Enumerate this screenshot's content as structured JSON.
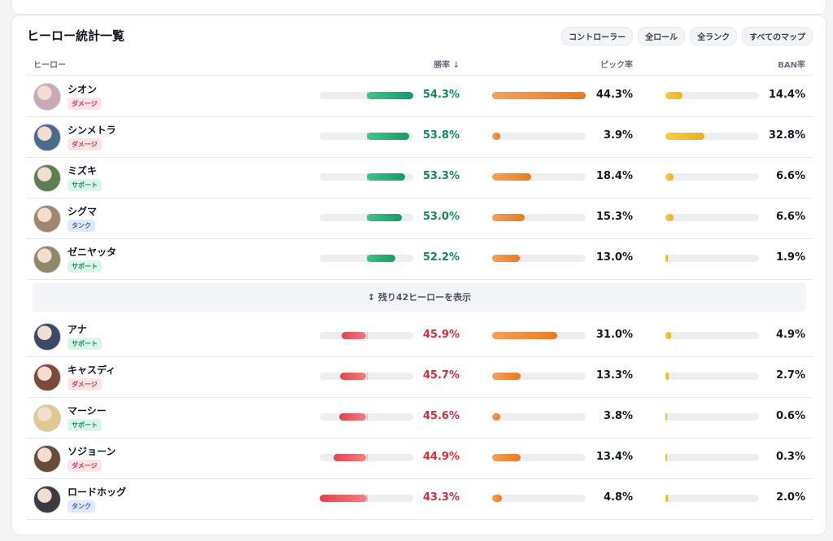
{
  "header": {
    "title": "ヒーロー統計一覧",
    "filters": [
      "コントローラー",
      "全ロール",
      "全ランク",
      "すべてのマップ"
    ]
  },
  "table": {
    "columns": [
      "ヒーロー",
      "勝率 ↓",
      "ピック率",
      "BAN率"
    ],
    "top_rows": [
      {
        "name": "シオン",
        "role": "ダメージ",
        "win_rate": {
          "value": 54.3,
          "label": "54.3%"
        },
        "pick_rate": {
          "value": 44.3,
          "label": "44.3%"
        },
        "ban_rate": {
          "value": 14.4,
          "label": "14.4%"
        }
      },
      {
        "name": "シンメトラ",
        "role": "ダメージ",
        "win_rate": {
          "value": 53.8,
          "label": "53.8%"
        },
        "pick_rate": {
          "value": 3.9,
          "label": "3.9%"
        },
        "ban_rate": {
          "value": 32.8,
          "label": "32.8%"
        }
      },
      {
        "name": "ミズキ",
        "role": "サポート",
        "win_rate": {
          "value": 53.3,
          "label": "53.3%"
        },
        "pick_rate": {
          "value": 18.4,
          "label": "18.4%"
        },
        "ban_rate": {
          "value": 6.6,
          "label": "6.6%"
        }
      },
      {
        "name": "シグマ",
        "role": "タンク",
        "win_rate": {
          "value": 53.0,
          "label": "53.0%"
        },
        "pick_rate": {
          "value": 15.3,
          "label": "15.3%"
        },
        "ban_rate": {
          "value": 6.6,
          "label": "6.6%"
        }
      },
      {
        "name": "ゼニヤッタ",
        "role": "サポート",
        "win_rate": {
          "value": 52.2,
          "label": "52.2%"
        },
        "pick_rate": {
          "value": 13.0,
          "label": "13.0%"
        },
        "ban_rate": {
          "value": 1.9,
          "label": "1.9%"
        }
      }
    ],
    "expand_label": "↕ 残り42ヒーローを表示",
    "bottom_rows": [
      {
        "name": "アナ",
        "role": "サポート",
        "win_rate": {
          "value": 45.9,
          "label": "45.9%"
        },
        "pick_rate": {
          "value": 31.0,
          "label": "31.0%"
        },
        "ban_rate": {
          "value": 4.9,
          "label": "4.9%"
        }
      },
      {
        "name": "キャスディ",
        "role": "ダメージ",
        "win_rate": {
          "value": 45.7,
          "label": "45.7%"
        },
        "pick_rate": {
          "value": 13.3,
          "label": "13.3%"
        },
        "ban_rate": {
          "value": 2.7,
          "label": "2.7%"
        }
      },
      {
        "name": "マーシー",
        "role": "サポート",
        "win_rate": {
          "value": 45.6,
          "label": "45.6%"
        },
        "pick_rate": {
          "value": 3.8,
          "label": "3.8%"
        },
        "ban_rate": {
          "value": 0.6,
          "label": "0.6%"
        }
      },
      {
        "name": "ソジョーン",
        "role": "ダメージ",
        "win_rate": {
          "value": 44.9,
          "label": "44.9%"
        },
        "pick_rate": {
          "value": 13.4,
          "label": "13.4%"
        },
        "ban_rate": {
          "value": 0.3,
          "label": "0.3%"
        }
      },
      {
        "name": "ロードホッグ",
        "role": "タンク",
        "win_rate": {
          "value": 43.3,
          "label": "43.3%"
        },
        "pick_rate": {
          "value": 4.8,
          "label": "4.8%"
        },
        "ban_rate": {
          "value": 2.0,
          "label": "2.0%"
        }
      }
    ]
  }
}
